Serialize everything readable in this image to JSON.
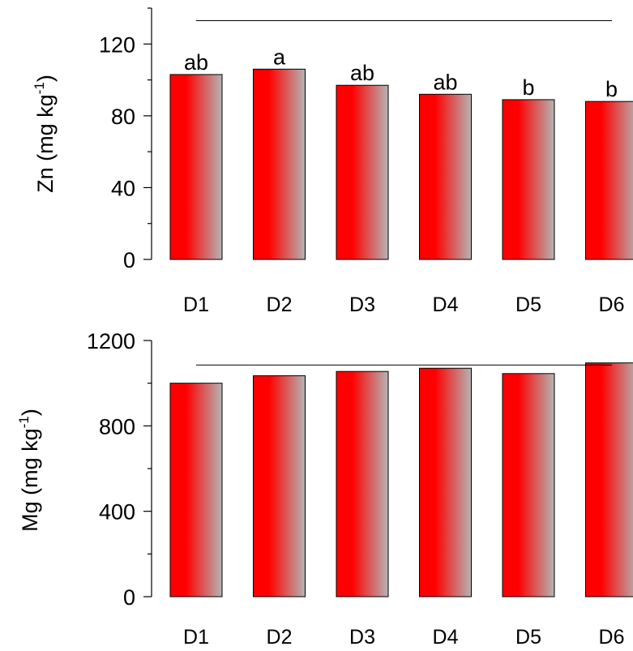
{
  "chart_data": [
    {
      "type": "bar",
      "categories": [
        "D1",
        "D2",
        "D3",
        "D4",
        "D5",
        "D6"
      ],
      "values": [
        103,
        106,
        97,
        92,
        89,
        88
      ],
      "ylabel": "Zn (mg kg",
      "ylabel_sup": "-1",
      "ylabel_close": ")",
      "ylim": [
        0,
        140
      ],
      "yticks": [
        0,
        40,
        80,
        120
      ],
      "yticks_minor": [
        20,
        60,
        100,
        140
      ],
      "significance_letters": [
        "ab",
        "a",
        "ab",
        "ab",
        "b",
        "b"
      ],
      "reference_line": 133,
      "grid": false,
      "bar_fill": [
        "#ff0000",
        "#b4b4b4"
      ]
    },
    {
      "type": "bar",
      "categories": [
        "D1",
        "D2",
        "D3",
        "D4",
        "D5",
        "D6"
      ],
      "values": [
        1000,
        1035,
        1055,
        1070,
        1045,
        1095
      ],
      "ylabel": "Mg (mg kg",
      "ylabel_sup": "-1",
      "ylabel_close": ")",
      "ylim": [
        0,
        1200
      ],
      "yticks": [
        0,
        400,
        800,
        1200
      ],
      "yticks_minor": [
        200,
        600,
        1000
      ],
      "significance_letters": [],
      "reference_line": 1085,
      "grid": false,
      "bar_fill": [
        "#ff0000",
        "#b4b4b4"
      ]
    }
  ]
}
